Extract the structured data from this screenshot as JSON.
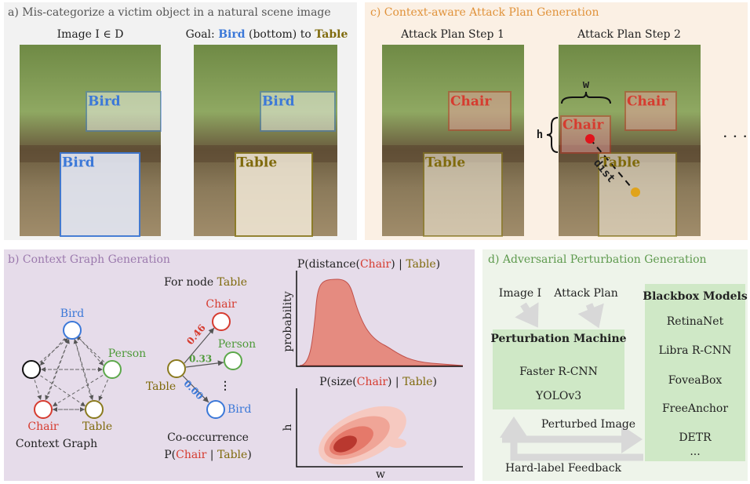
{
  "panel_a": {
    "title": "a) Mis-categorize a victim object in a natural scene image",
    "image_label": "Image I ∈ D",
    "goal": {
      "prefix": "Goal: ",
      "source": "Bird",
      "middle": " (bottom) to ",
      "target": "Table"
    },
    "image1_boxes": [
      "Bird",
      "Bird"
    ],
    "image2_boxes": [
      "Bird",
      "Table"
    ]
  },
  "panel_b": {
    "title": "b) Context Graph Generation",
    "context_graph": {
      "nodes": [
        "Bird",
        "Person",
        "Chair",
        "Table"
      ],
      "caption": "Context Graph"
    },
    "cooccurrence": {
      "heading": {
        "prefix": "For node ",
        "node": "Table"
      },
      "source": "Table",
      "edges": [
        {
          "target": "Chair",
          "prob": "0.46"
        },
        {
          "target": "Person",
          "prob": "0.33"
        },
        {
          "target": "Bird",
          "prob": "0.00"
        }
      ],
      "more": "⋮",
      "caption": "Co-occurrence",
      "formula": {
        "open": "P(",
        "object": "Chair",
        "sep": " | ",
        "given": "Table",
        "close": ")"
      }
    },
    "distance_plot": {
      "title": {
        "open": "P(distance(",
        "object": "Chair",
        "sep": ") | ",
        "given": "Table",
        "close": ")"
      },
      "ylabel": "probability"
    },
    "size_plot": {
      "title": {
        "open": "P(size(",
        "object": "Chair",
        "sep": ") | ",
        "given": "Table",
        "close": ")"
      },
      "ylabel": "h",
      "xlabel": "w"
    }
  },
  "panel_c": {
    "title": "c) Context-aware Attack Plan Generation",
    "steps": [
      "Attack Plan Step 1",
      "Attack Plan Step 2"
    ],
    "step1_boxes": [
      "Chair",
      "Table"
    ],
    "step2_boxes": [
      "Chair",
      "Chair",
      "Table"
    ],
    "width_label": "w",
    "height_label": "h",
    "distance_label": "dist",
    "ellipsis": "· · ·"
  },
  "panel_d": {
    "title": "d) Adversarial Perturbation Generation",
    "inputs": [
      "Image I",
      "Attack Plan"
    ],
    "machine": {
      "title": "Perturbation Machine",
      "models": [
        "Faster R-CNN",
        "YOLOv3"
      ]
    },
    "blackbox": {
      "title": "Blackbox Models",
      "models": [
        "RetinaNet",
        "Libra R-CNN",
        "FoveaBox",
        "FreeAnchor",
        "DETR",
        "..."
      ]
    },
    "perturbed": "Perturbed Image",
    "feedback": "Hard-label Feedback"
  }
}
